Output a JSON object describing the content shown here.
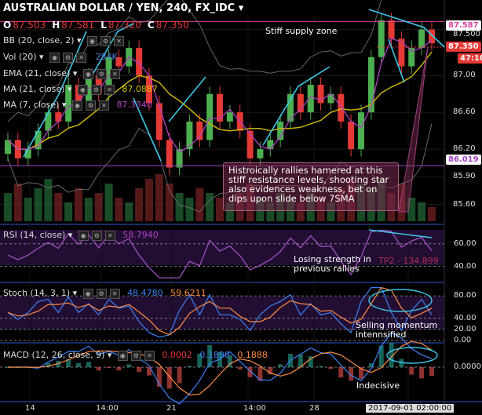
{
  "header": {
    "title": "AUSTRALIAN DOLLAR / YEN, 240, FX_IDC",
    "ohlc": [
      {
        "k": "O",
        "v": "87.503"
      },
      {
        "k": "H",
        "v": "87.581"
      },
      {
        "k": "L",
        "v": "87.320"
      },
      {
        "k": "C",
        "v": "87.350"
      }
    ]
  },
  "indicators": {
    "bb": "BB (20, close, 2)",
    "vol": "Vol (20)",
    "vol_val": "284K",
    "ema": "EMA (21, close)",
    "ma21": "MA (21, close)",
    "ma21_val": "87.0887",
    "ma7": "MA (7, close)",
    "ma7_val": "87.3340",
    "rsi": "RSI (14, close)",
    "rsi_val": "58.7940",
    "stoch": "Stoch (14, 3, 1)",
    "stoch_k": "48.4780",
    "stoch_d": "59.6211",
    "macd": "MACD (12, 26, close, 9)",
    "macd_hist": "0.0002",
    "macd_line": "0.1890",
    "macd_sig": "0.1888"
  },
  "notes": {
    "supply": "Stiff supply zone",
    "box": "Histroically rallies hamered at this stiff resistance levels, shooting star also evidences weakness, bet on dips upon slide below 7SMA",
    "rsi": "Losing strength in previous rallies",
    "tp": "TP2 - 134.899",
    "stoch": "Selling momentum intennsified",
    "macd": "Indecisive"
  },
  "price_tags": {
    "high": "87.587",
    "mid": "87.500",
    "close": "87.350",
    "time": "47:10",
    "support": "86.019"
  },
  "colors": {
    "up": "#4caf50",
    "down": "#e53935",
    "ema": "#c8b400",
    "ma7": "#b040c0",
    "bb": "#666666",
    "arrow": "#3cc8e8",
    "resistance": "#e040a0",
    "support": "#a040c0"
  },
  "chart_data": [
    {
      "type": "candlestick",
      "title": "AUSTRALIAN DOLLAR / YEN, 240, FX_IDC",
      "x_ticks": [
        "14",
        "14:00",
        "21",
        "14:00",
        "28",
        "2017-09-01 02:00:00"
      ],
      "y_ticks": [
        87.5,
        87.0,
        86.6,
        86.2,
        85.9,
        85.6
      ],
      "ylim": [
        85.4,
        87.65
      ],
      "resistance": 87.587,
      "support": 86.019,
      "close": [
        86.3,
        86.1,
        86.2,
        86.4,
        86.6,
        86.5,
        86.9,
        86.7,
        87.0,
        86.8,
        87.2,
        87.1,
        87.3,
        87.0,
        86.7,
        86.3,
        86.0,
        86.2,
        86.5,
        86.3,
        86.8,
        86.5,
        86.6,
        86.4,
        86.1,
        86.2,
        86.3,
        86.5,
        86.8,
        86.6,
        86.9,
        86.7,
        86.8,
        86.5,
        86.2,
        86.6,
        87.2,
        87.6,
        87.4,
        87.1,
        87.3,
        87.5,
        87.35
      ]
    },
    {
      "type": "line",
      "name": "RSI",
      "y_ticks": [
        60.0,
        40.0
      ],
      "ylim": [
        28,
        75
      ],
      "last": 58.794
    },
    {
      "type": "line",
      "name": "Stoch",
      "y_ticks": [
        80.0,
        40.0,
        20.0,
        0.0
      ],
      "ylim": [
        0,
        100
      ],
      "k": 48.478,
      "d": 59.6211
    },
    {
      "type": "line",
      "name": "MACD",
      "y_ticks": [
        0.0
      ],
      "ylim": [
        -0.45,
        0.3
      ],
      "macd": 0.189,
      "signal": 0.1888,
      "histogram": 0.0002
    }
  ]
}
